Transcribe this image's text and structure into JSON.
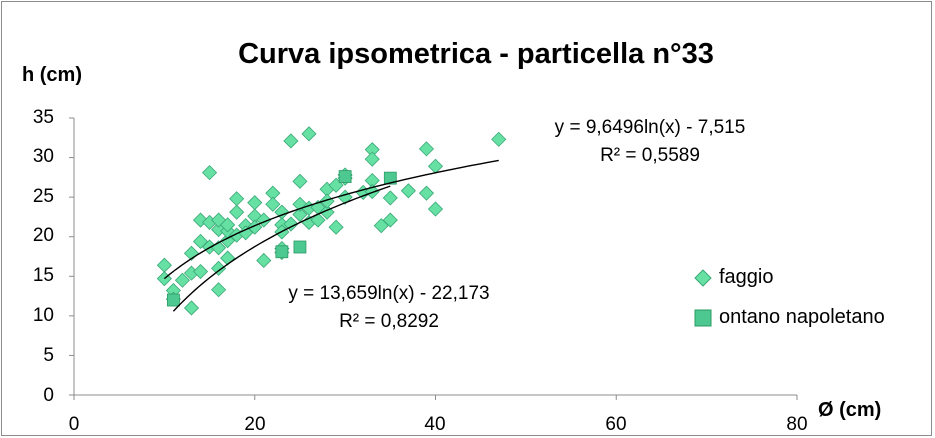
{
  "chart_data": {
    "type": "scatter",
    "title": "Curva ipsometrica - particella n°33",
    "xlabel": "Ø (cm)",
    "ylabel": "h (cm)",
    "xlim": [
      0,
      80
    ],
    "ylim": [
      0,
      35
    ],
    "x_ticks": [
      "0",
      "20",
      "40",
      "60",
      "80"
    ],
    "y_ticks": [
      "0",
      "5",
      "10",
      "15",
      "20",
      "25",
      "30",
      "35"
    ],
    "grid": false,
    "legend_position": "right",
    "series": [
      {
        "name": "faggio",
        "marker": "diamond",
        "color": "#66e0a3",
        "points": [
          [
            10,
            16.4
          ],
          [
            10,
            14.7
          ],
          [
            11,
            13.2
          ],
          [
            11,
            12.1
          ],
          [
            12,
            14.5
          ],
          [
            13,
            11.0
          ],
          [
            13,
            15.4
          ],
          [
            13,
            17.9
          ],
          [
            14,
            15.6
          ],
          [
            14,
            19.4
          ],
          [
            14,
            22.1
          ],
          [
            15,
            28.1
          ],
          [
            15,
            21.8
          ],
          [
            15,
            18.7
          ],
          [
            16,
            13.3
          ],
          [
            16,
            16.0
          ],
          [
            16,
            18.6
          ],
          [
            16,
            20.9
          ],
          [
            16,
            22.1
          ],
          [
            17,
            19.5
          ],
          [
            17,
            20.7
          ],
          [
            17,
            17.3
          ],
          [
            17,
            21.5
          ],
          [
            18,
            24.8
          ],
          [
            18,
            23.1
          ],
          [
            18,
            20.2
          ],
          [
            19,
            21.4
          ],
          [
            19,
            20.5
          ],
          [
            20,
            24.3
          ],
          [
            20,
            22.6
          ],
          [
            20,
            21.2
          ],
          [
            21,
            17.0
          ],
          [
            21,
            22.1
          ],
          [
            22,
            25.5
          ],
          [
            22,
            24.1
          ],
          [
            23,
            23.1
          ],
          [
            23,
            21.5
          ],
          [
            23,
            20.6
          ],
          [
            23,
            18.5
          ],
          [
            23,
            18.0
          ],
          [
            24,
            32.1
          ],
          [
            24,
            21.6
          ],
          [
            25,
            22.8
          ],
          [
            25,
            24.1
          ],
          [
            25,
            27.0
          ],
          [
            26,
            33.0
          ],
          [
            26,
            23.6
          ],
          [
            26,
            21.8
          ],
          [
            27,
            23.7
          ],
          [
            27,
            22.1
          ],
          [
            28,
            26.0
          ],
          [
            28,
            23.1
          ],
          [
            28,
            24.5
          ],
          [
            29,
            26.5
          ],
          [
            29,
            21.2
          ],
          [
            30,
            27.4
          ],
          [
            30,
            27.8
          ],
          [
            30,
            25.0
          ],
          [
            32,
            25.6
          ],
          [
            33,
            27.1
          ],
          [
            33,
            31.0
          ],
          [
            33,
            29.8
          ],
          [
            33,
            25.7
          ],
          [
            34,
            21.4
          ],
          [
            35,
            24.9
          ],
          [
            35,
            22.1
          ],
          [
            37,
            25.8
          ],
          [
            39,
            25.5
          ],
          [
            39,
            31.1
          ],
          [
            40,
            28.9
          ],
          [
            40,
            23.5
          ],
          [
            47,
            32.3
          ]
        ]
      },
      {
        "name": "ontano napoletano",
        "marker": "square",
        "color": "#4cc890",
        "points": [
          [
            11,
            12.0
          ],
          [
            23,
            18.1
          ],
          [
            25,
            18.7
          ],
          [
            30,
            27.6
          ],
          [
            35,
            27.4
          ]
        ]
      }
    ],
    "trendlines": [
      {
        "equation": "y = 9,6496ln(x) - 7,515",
        "r2": "R² = 0,5589",
        "a": 9.6496,
        "b": -7.515,
        "xrange": [
          10,
          47
        ]
      },
      {
        "equation": "y = 13,659ln(x) - 22,173",
        "r2": "R² = 0,8292",
        "a": 13.659,
        "b": -22.173,
        "xrange": [
          11,
          35
        ]
      }
    ]
  }
}
